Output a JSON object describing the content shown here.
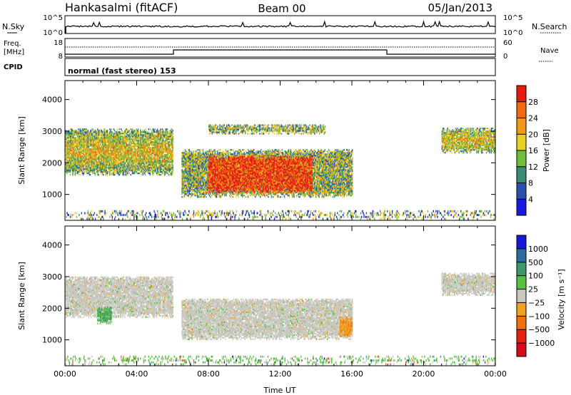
{
  "header": {
    "station": "Hankasalmi (fitACF)",
    "beam": "Beam 00",
    "date": "05/Jan/2013"
  },
  "top_panels": {
    "nsky_label": "N.Sky",
    "nsky_ticks": [
      "10^5",
      "10^0"
    ],
    "nsearch_label": "N.Search",
    "nsearch_ticks": [
      "10^5",
      "10^0"
    ],
    "freq_label_1": "Freq.",
    "freq_label_2": "[MHz]",
    "freq_ticks": [
      "18",
      "8"
    ],
    "nave_label": "Nave",
    "nave_ticks": [
      "60",
      "0"
    ],
    "cpid_label": "CPID",
    "cpid_text": "normal (fast stereo) 153"
  },
  "chart_data": [
    {
      "type": "heatmap",
      "name": "power",
      "ylabel": "Slant Range [km]",
      "xlabel": "",
      "ylim": [
        180,
        4600
      ],
      "y_ticks": [
        "1000",
        "2000",
        "3000",
        "4000"
      ],
      "xlim_hours": [
        0,
        24
      ],
      "colorbar_label": "Power [dB]",
      "colorbar_ticks": [
        "4",
        "8",
        "12",
        "16",
        "20",
        "24",
        "28"
      ],
      "colorbar_colors": [
        "#1818e6",
        "#2850b0",
        "#3d8a78",
        "#6fbf3a",
        "#e8d020",
        "#f29a18",
        "#f26a10",
        "#e81a10"
      ],
      "regions": [
        {
          "t": [
            0.0,
            6.0
          ],
          "r": [
            1600,
            3050
          ],
          "level": "mid"
        },
        {
          "t": [
            6.5,
            16.0
          ],
          "r": [
            900,
            2400
          ],
          "level": "low"
        },
        {
          "t": [
            8.0,
            13.8
          ],
          "r": [
            1050,
            2200
          ],
          "level": "high"
        },
        {
          "t": [
            8.0,
            14.5
          ],
          "r": [
            2900,
            3200
          ],
          "level": "low"
        },
        {
          "t": [
            21.0,
            24.0
          ],
          "r": [
            2300,
            3100
          ],
          "level": "mid"
        },
        {
          "t": [
            0.0,
            24.0
          ],
          "r": [
            200,
            480
          ],
          "level": "scatter"
        }
      ]
    },
    {
      "type": "heatmap",
      "name": "velocity",
      "ylabel": "Slant Range [km]",
      "xlabel": "Time UT",
      "ylim": [
        180,
        4600
      ],
      "y_ticks": [
        "1000",
        "2000",
        "3000",
        "4000"
      ],
      "x_ticks": [
        "00:00",
        "04:00",
        "08:00",
        "12:00",
        "16:00",
        "20:00",
        "00:00"
      ],
      "colorbar_label": "Velocity [m s⁻¹]",
      "colorbar_ticks": [
        "1000",
        "500",
        "100",
        "25",
        "−25",
        "−100",
        "−500",
        "−1000"
      ],
      "colorbar_colors": [
        "#1818d8",
        "#2a6ea0",
        "#3a9a68",
        "#58c040",
        "#c8c8c0",
        "#f2a020",
        "#f27010",
        "#e82010",
        "#d80a18"
      ],
      "regions": [
        {
          "t": [
            0.0,
            6.0
          ],
          "r": [
            1700,
            3000
          ],
          "level": "gray"
        },
        {
          "t": [
            6.5,
            16.0
          ],
          "r": [
            1000,
            2300
          ],
          "level": "gray"
        },
        {
          "t": [
            21.0,
            24.0
          ],
          "r": [
            2400,
            3100
          ],
          "level": "gray"
        },
        {
          "t": [
            15.3,
            16.0
          ],
          "r": [
            1100,
            1700
          ],
          "level": "orange"
        },
        {
          "t": [
            1.8,
            2.6
          ],
          "r": [
            1500,
            2000
          ],
          "level": "green"
        },
        {
          "t": [
            0.0,
            24.0
          ],
          "r": [
            200,
            480
          ],
          "level": "scatter"
        }
      ]
    }
  ]
}
